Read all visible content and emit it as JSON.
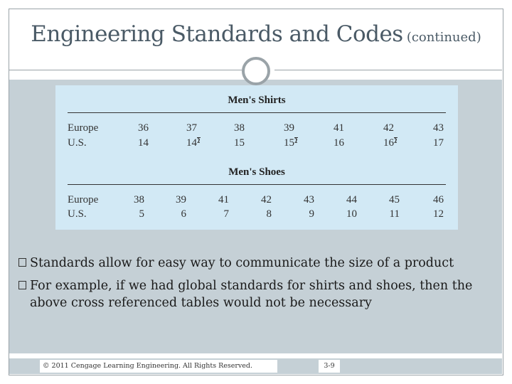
{
  "slide": {
    "title_main": "Engineering Standards and Codes",
    "title_sub": "(continued)"
  },
  "table": {
    "shirts": {
      "title": "Men's Shirts",
      "europe_label": "Europe",
      "us_label": "U.S.",
      "europe": [
        "36",
        "37",
        "38",
        "39",
        "41",
        "42",
        "43"
      ],
      "us": [
        {
          "whole": "14",
          "frac": ""
        },
        {
          "whole": "14",
          "frac": "1/2"
        },
        {
          "whole": "15",
          "frac": ""
        },
        {
          "whole": "15",
          "frac": "1/2"
        },
        {
          "whole": "16",
          "frac": ""
        },
        {
          "whole": "16",
          "frac": "1/2"
        },
        {
          "whole": "17",
          "frac": ""
        }
      ]
    },
    "shoes": {
      "title": "Men's Shoes",
      "europe_label": "Europe",
      "us_label": "U.S.",
      "europe": [
        "38",
        "39",
        "41",
        "42",
        "43",
        "44",
        "45",
        "46"
      ],
      "us": [
        "5",
        "6",
        "7",
        "8",
        "9",
        "10",
        "11",
        "12"
      ]
    }
  },
  "bullets": [
    "Standards allow for easy way to communicate the size of a product",
    "For example, if we had global standards for shirts and shoes, then the above cross referenced tables would not be necessary"
  ],
  "footer": {
    "copyright": "© 2011 Cengage Learning Engineering. All Rights Reserved.",
    "page": "3-9"
  }
}
